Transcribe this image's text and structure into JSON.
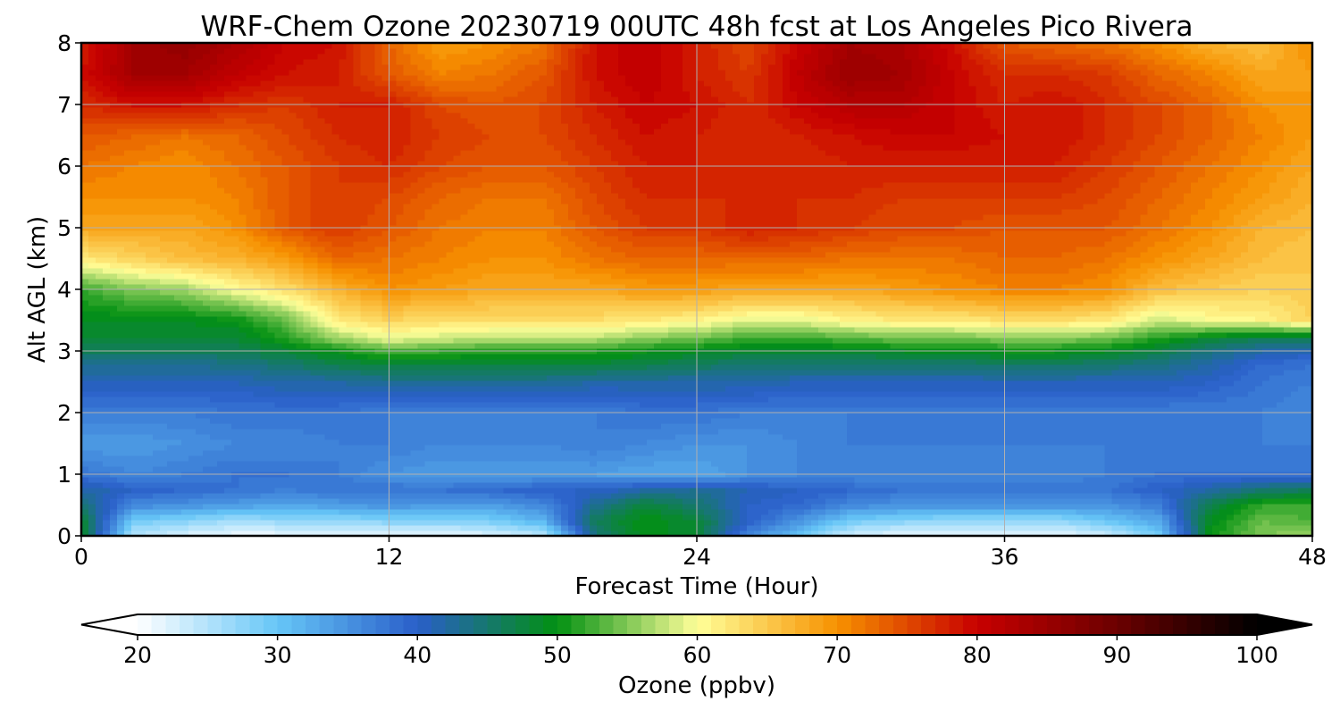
{
  "chart_data": {
    "type": "heatmap",
    "title": "WRF-Chem Ozone  20230719 00UTC 48h fcst at Los Angeles Pico Rivera",
    "xlabel": "Forecast Time (Hour)",
    "ylabel": "Alt AGL (km)",
    "xlim": [
      0,
      48
    ],
    "ylim": [
      0,
      8
    ],
    "xticks": [
      0,
      12,
      24,
      36,
      48
    ],
    "yticks": [
      0,
      1,
      2,
      3,
      4,
      5,
      6,
      7,
      8
    ],
    "grid": true,
    "colorbar": {
      "label": "Ozone  (ppbv)",
      "min": 20,
      "max": 100,
      "ticks": [
        20,
        30,
        40,
        50,
        60,
        70,
        80,
        90,
        100
      ],
      "extend": "both",
      "levels": 80,
      "stops": [
        {
          "value": 20,
          "color": "#ffffff"
        },
        {
          "value": 30,
          "color": "#66c6f7"
        },
        {
          "value": 40,
          "color": "#2a5fc9"
        },
        {
          "value": 50,
          "color": "#029012"
        },
        {
          "value": 60,
          "color": "#ffff99"
        },
        {
          "value": 70,
          "color": "#f79100"
        },
        {
          "value": 80,
          "color": "#c80000"
        },
        {
          "value": 90,
          "color": "#6b0000"
        },
        {
          "value": 100,
          "color": "#000000"
        }
      ]
    },
    "x": [
      0,
      2,
      4,
      6,
      8,
      10,
      12,
      14,
      16,
      18,
      20,
      22,
      24,
      26,
      28,
      30,
      32,
      34,
      36,
      38,
      40,
      42,
      44,
      46,
      48
    ],
    "y": [
      0,
      0.25,
      0.5,
      0.75,
      1,
      1.5,
      2,
      2.5,
      2.8,
      3,
      3.2,
      3.5,
      4,
      4.5,
      5,
      5.5,
      6,
      6.5,
      7,
      7.5,
      8
    ],
    "values": [
      [
        49,
        25,
        22,
        21,
        21,
        21,
        21,
        21,
        22,
        24,
        44,
        50,
        48,
        36,
        30,
        23,
        21,
        21,
        21,
        21,
        23,
        29,
        50,
        55,
        56
      ],
      [
        49,
        29,
        28,
        26,
        27,
        27,
        28,
        28,
        29,
        32,
        46,
        50,
        48,
        40,
        35,
        29,
        28,
        27,
        27,
        27,
        30,
        33,
        49,
        54,
        53
      ],
      [
        45,
        36,
        35,
        34,
        33,
        34,
        35,
        34,
        34,
        36,
        43,
        48,
        45,
        40,
        39,
        36,
        35,
        35,
        35,
        35,
        35,
        37,
        47,
        52,
        52
      ],
      [
        42,
        40,
        39,
        38,
        37,
        38,
        38,
        38,
        39,
        40,
        40,
        42,
        43,
        41,
        40,
        39,
        38,
        38,
        38,
        38,
        38,
        40,
        42,
        45,
        46
      ],
      [
        38,
        36,
        37,
        38,
        38,
        37,
        35,
        34,
        34,
        34,
        34,
        33,
        33,
        35,
        36,
        36,
        36,
        36,
        36,
        36,
        37,
        38,
        38,
        38,
        38
      ],
      [
        34,
        34,
        35,
        36,
        36,
        37,
        37,
        36,
        36,
        36,
        37,
        36,
        35,
        35,
        36,
        37,
        37,
        37,
        37,
        37,
        37,
        37,
        37,
        37,
        37
      ],
      [
        37,
        37,
        37,
        38,
        38,
        38,
        37,
        37,
        37,
        37,
        37,
        38,
        38,
        37,
        37,
        37,
        37,
        37,
        37,
        37,
        37,
        37,
        37,
        37,
        36
      ],
      [
        41,
        41,
        41,
        41,
        42,
        42,
        43,
        43,
        43,
        43,
        42,
        42,
        42,
        42,
        41,
        41,
        41,
        41,
        41,
        41,
        41,
        41,
        40,
        38,
        37
      ],
      [
        43,
        43,
        43,
        44,
        45,
        47,
        48,
        48,
        48,
        48,
        48,
        47,
        46,
        45,
        45,
        45,
        45,
        45,
        46,
        46,
        45,
        44,
        42,
        39,
        38
      ],
      [
        46,
        46,
        46,
        46,
        48,
        50,
        53,
        52,
        51,
        51,
        51,
        50,
        49,
        48,
        48,
        48,
        49,
        49,
        50,
        50,
        49,
        47,
        44,
        42,
        41
      ],
      [
        48,
        48,
        48,
        48,
        51,
        56,
        59,
        58,
        57,
        57,
        57,
        55,
        54,
        52,
        52,
        53,
        54,
        54,
        55,
        55,
        54,
        51,
        48,
        46,
        46
      ],
      [
        49,
        49,
        49,
        50,
        54,
        62,
        64,
        63,
        63,
        63,
        63,
        62,
        61,
        59,
        59,
        61,
        62,
        62,
        63,
        63,
        62,
        58,
        60,
        61,
        64
      ],
      [
        52,
        55,
        56,
        60,
        63,
        67,
        70,
        69,
        68,
        68,
        68,
        69,
        69,
        68,
        68,
        68,
        69,
        70,
        71,
        71,
        70,
        66,
        65,
        64,
        65
      ],
      [
        62,
        64,
        66,
        67,
        69,
        73,
        72,
        71,
        70,
        70,
        72,
        73,
        73,
        73,
        73,
        72,
        72,
        72,
        73,
        73,
        72,
        70,
        68,
        66,
        65
      ],
      [
        68,
        68,
        68,
        70,
        74,
        76,
        74,
        72,
        71,
        71,
        74,
        76,
        76,
        78,
        77,
        76,
        75,
        75,
        74,
        74,
        74,
        72,
        70,
        67,
        66
      ],
      [
        70,
        70,
        70,
        71,
        74,
        76,
        75,
        73,
        72,
        72,
        75,
        77,
        77,
        77,
        77,
        77,
        76,
        76,
        76,
        76,
        75,
        73,
        71,
        69,
        67
      ],
      [
        72,
        71,
        70,
        72,
        74,
        76,
        77,
        75,
        74,
        74,
        76,
        78,
        78,
        77,
        77,
        78,
        78,
        78,
        78,
        78,
        76,
        74,
        72,
        70,
        68
      ],
      [
        74,
        73,
        72,
        73,
        75,
        77,
        78,
        76,
        75,
        75,
        77,
        79,
        78,
        77,
        78,
        79,
        80,
        80,
        79,
        79,
        77,
        75,
        73,
        71,
        69
      ],
      [
        77,
        79,
        79,
        77,
        76,
        78,
        78,
        75,
        74,
        75,
        78,
        80,
        79,
        77,
        80,
        82,
        82,
        80,
        78,
        79,
        77,
        75,
        73,
        70,
        69
      ],
      [
        79,
        84,
        84,
        81,
        79,
        78,
        74,
        71,
        72,
        74,
        79,
        81,
        78,
        76,
        81,
        85,
        84,
        80,
        77,
        77,
        76,
        73,
        71,
        68,
        69
      ],
      [
        78,
        84,
        86,
        83,
        80,
        79,
        73,
        69,
        70,
        72,
        79,
        81,
        78,
        75,
        80,
        84,
        83,
        79,
        74,
        73,
        72,
        70,
        67,
        66,
        70
      ]
    ]
  }
}
